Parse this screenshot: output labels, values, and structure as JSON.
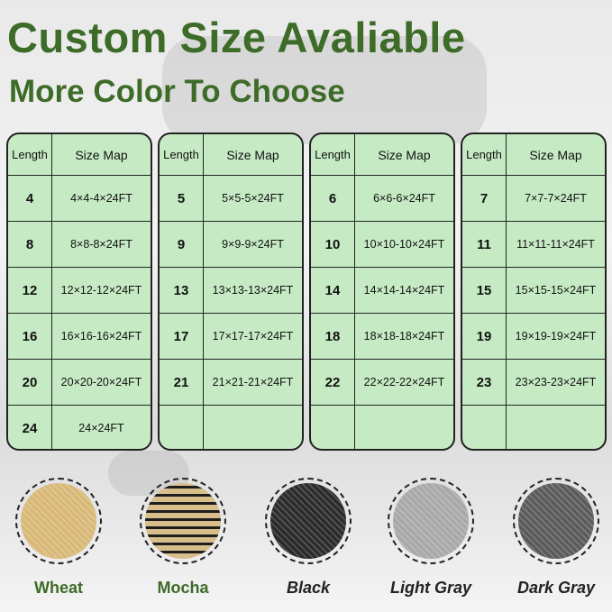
{
  "title": "Custom Size Avaliable",
  "subtitle": "More Color To Choose",
  "table_headers": {
    "length": "Length",
    "size_map": "Size Map"
  },
  "tables": [
    [
      [
        "4",
        "4×4-4×24FT"
      ],
      [
        "8",
        "8×8-8×24FT"
      ],
      [
        "12",
        "12×12-12×24FT"
      ],
      [
        "16",
        "16×16-16×24FT"
      ],
      [
        "20",
        "20×20-20×24FT"
      ],
      [
        "24",
        "24×24FT"
      ]
    ],
    [
      [
        "5",
        "5×5-5×24FT"
      ],
      [
        "9",
        "9×9-9×24FT"
      ],
      [
        "13",
        "13×13-13×24FT"
      ],
      [
        "17",
        "17×17-17×24FT"
      ],
      [
        "21",
        "21×21-21×24FT"
      ],
      [
        "",
        ""
      ]
    ],
    [
      [
        "6",
        "6×6-6×24FT"
      ],
      [
        "10",
        "10×10-10×24FT"
      ],
      [
        "14",
        "14×14-14×24FT"
      ],
      [
        "18",
        "18×18-18×24FT"
      ],
      [
        "22",
        "22×22-22×24FT"
      ],
      [
        "",
        ""
      ]
    ],
    [
      [
        "7",
        "7×7-7×24FT"
      ],
      [
        "11",
        "11×11-11×24FT"
      ],
      [
        "15",
        "15×15-15×24FT"
      ],
      [
        "19",
        "19×19-19×24FT"
      ],
      [
        "23",
        "23×23-23×24FT"
      ],
      [
        "",
        ""
      ]
    ]
  ],
  "colors": [
    {
      "name": "Wheat",
      "hex": "#d8b877",
      "italic": false
    },
    {
      "name": "Mocha",
      "hex": "#8a7450",
      "italic": false
    },
    {
      "name": "Black",
      "hex": "#2a2a2a",
      "italic": true
    },
    {
      "name": "Light Gray",
      "hex": "#a8a8a8",
      "italic": true
    },
    {
      "name": "Dark Gray",
      "hex": "#5a5a5a",
      "italic": true
    }
  ],
  "accent": "#3d6b28",
  "table_bg": "#c6ebc4"
}
